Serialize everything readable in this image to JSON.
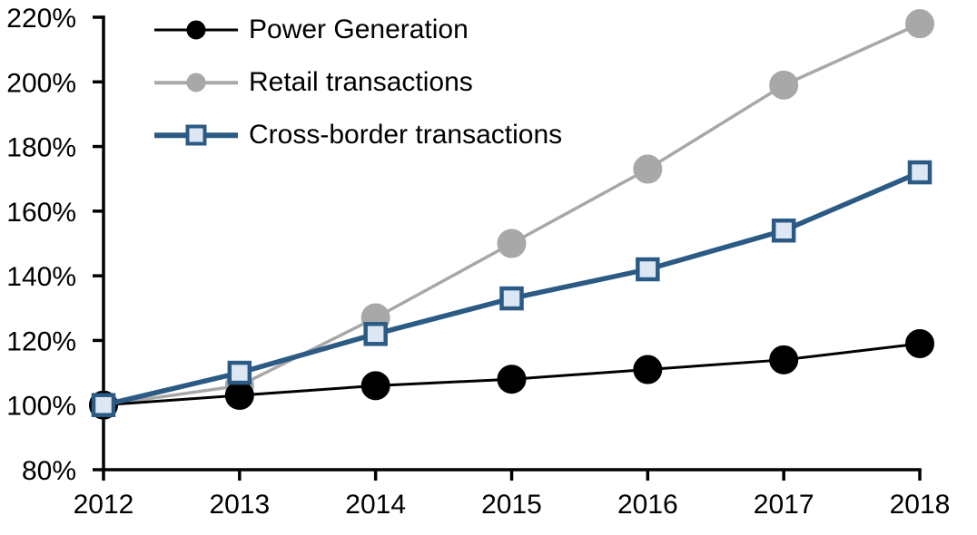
{
  "chart_data": {
    "type": "line",
    "title": "",
    "x_categories": [
      "2012",
      "2013",
      "2014",
      "2015",
      "2016",
      "2017",
      "2018"
    ],
    "series": [
      {
        "name": "Power Generation",
        "color": "#000000",
        "marker": "circle",
        "marker_fill": "#000000",
        "marker_stroke": "#000000",
        "line_width": 3,
        "values": [
          100,
          103,
          106,
          108,
          111,
          114,
          119
        ]
      },
      {
        "name": "Retail transactions",
        "color": "#a8a8a8",
        "marker": "circle",
        "marker_fill": "#a8a8a8",
        "marker_stroke": "#a8a8a8",
        "line_width": 3.5,
        "values": [
          100,
          106,
          127,
          150,
          173,
          199,
          218
        ]
      },
      {
        "name": "Cross-border transactions",
        "color": "#2b5a84",
        "marker": "square",
        "marker_fill": "#dce7f3",
        "marker_stroke": "#2b5a84",
        "line_width": 5.5,
        "values": [
          100,
          110,
          122,
          133,
          142,
          154,
          172
        ]
      }
    ],
    "y_axis": {
      "min": 80,
      "max": 220,
      "step": 20,
      "unit": "%",
      "tick_labels": [
        "80%",
        "100%",
        "120%",
        "140%",
        "160%",
        "180%",
        "200%",
        "220%"
      ]
    },
    "x_axis": {
      "tick_labels": [
        "2012",
        "2013",
        "2014",
        "2015",
        "2016",
        "2017",
        "2018"
      ]
    },
    "grid": false,
    "legend_position": "top-left",
    "axis_color": "#000000"
  }
}
